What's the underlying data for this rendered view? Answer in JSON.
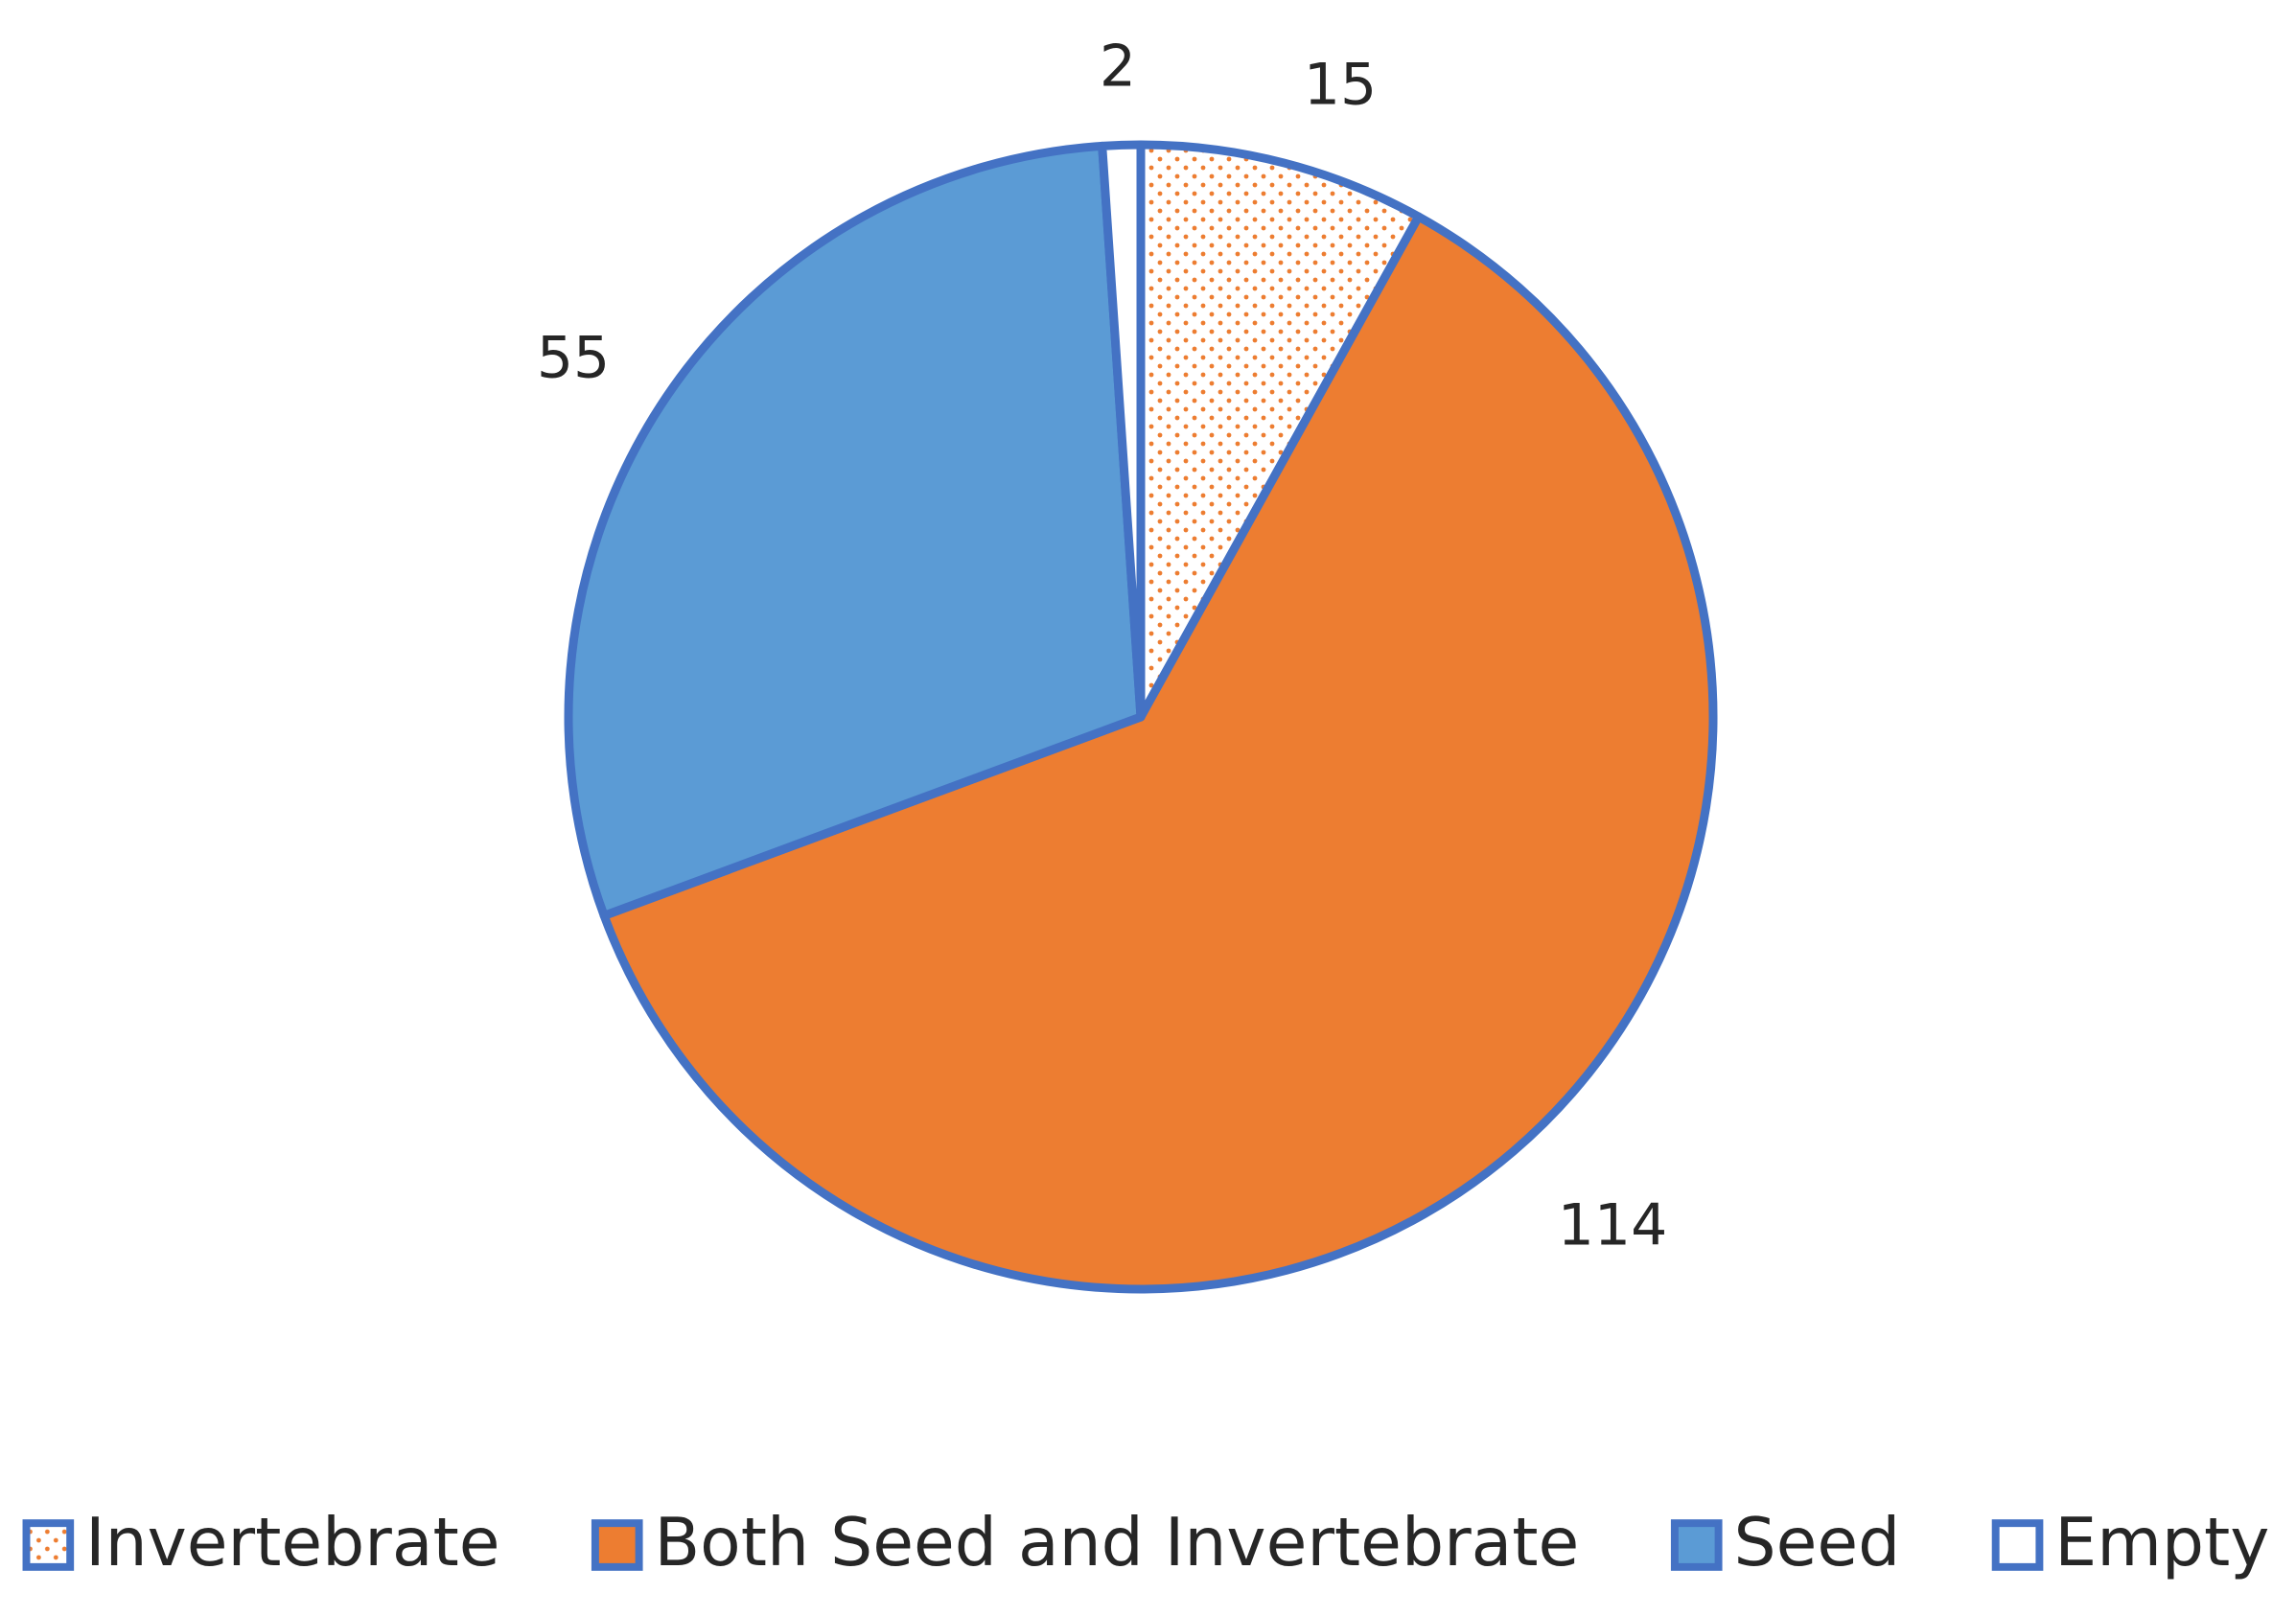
{
  "chart_data": {
    "type": "pie",
    "title": "",
    "slices": [
      {
        "name": "Invertebrate",
        "value": 15,
        "label": "15",
        "color": "#ED7D31",
        "pattern": "dotted"
      },
      {
        "name": "Both Seed and Invertebrate",
        "value": 114,
        "label": "114",
        "color": "#ED7D31",
        "pattern": "solid"
      },
      {
        "name": "Seed",
        "value": 55,
        "label": "55",
        "color": "#5B9BD5",
        "pattern": "solid"
      },
      {
        "name": "Empty",
        "value": 2,
        "label": "2",
        "color": "#FFFFFF",
        "pattern": "solid"
      }
    ],
    "border_color": "#4472C4",
    "start_angle_deg": 0,
    "direction": "clockwise",
    "legend_position": "bottom"
  }
}
